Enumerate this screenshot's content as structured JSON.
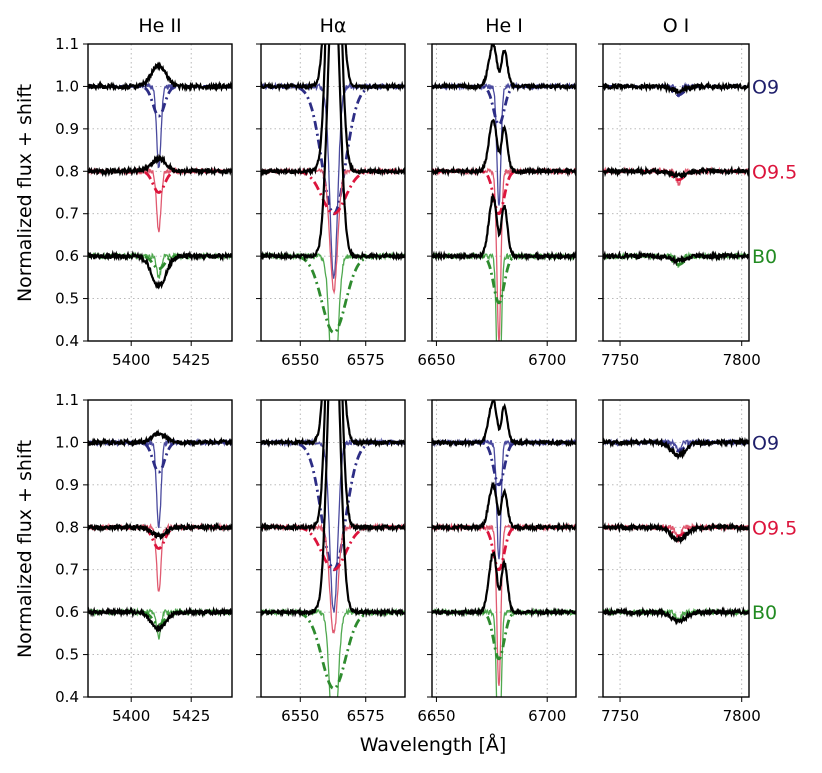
{
  "chart_data": {
    "type": "line",
    "ylabel": "Normalized flux + shift",
    "xlabel": "Wavelength [Å]",
    "ylim": [
      0.4,
      1.1
    ],
    "yticks": [
      "0.4",
      "0.5",
      "0.6",
      "0.7",
      "0.8",
      "0.9",
      "1.0",
      "1.1"
    ],
    "grid": true,
    "columns": [
      {
        "title": "He II",
        "line_center": 5411.5,
        "xlim": [
          5382,
          5442
        ],
        "xticks": [
          5400,
          5425
        ]
      },
      {
        "title": "Hα",
        "line_center": 6562.8,
        "xlim": [
          6535,
          6590
        ],
        "xticks": [
          6550,
          6575
        ]
      },
      {
        "title": "He I",
        "line_center": 6678.2,
        "xlim": [
          6648,
          6713
        ],
        "xticks": [
          6650,
          6700
        ]
      },
      {
        "title": "O I",
        "line_center": 7774,
        "xlim": [
          7743,
          7803
        ],
        "xticks": [
          7750,
          7800
        ]
      }
    ],
    "spectral_types": [
      {
        "name": "O9",
        "offset": 1.0,
        "color": "#1f1f6b",
        "model_color": "#2d2d85",
        "obs_color": "#4a4a9e"
      },
      {
        "name": "O9.5",
        "offset": 0.8,
        "color": "#dc143c",
        "model_color": "#dc143c",
        "obs_color": "#e05a70"
      },
      {
        "name": "B0",
        "offset": 0.6,
        "color": "#228b22",
        "model_color": "#2e8b2e",
        "obs_color": "#4fa84f"
      }
    ],
    "line_depths": {
      "top": {
        "model": [
          [
            0.07,
            0.3,
            0.09,
            0.02
          ],
          [
            0.05,
            0.1,
            0.1,
            0.02
          ],
          [
            0.03,
            0.18,
            0.11,
            0.02
          ]
        ],
        "observed_thin": [
          [
            0.19,
            0.45,
            0.28,
            0.02
          ],
          [
            0.14,
            0.28,
            0.4,
            0.03
          ],
          [
            0.05,
            0.35,
            0.42,
            0.02
          ]
        ],
        "emission_black": [
          [
            -0.05,
            0.85,
            0.1,
            0.01
          ],
          [
            -0.03,
            0.9,
            0.12,
            0.01
          ],
          [
            0.07,
            0.7,
            0.14,
            0.01
          ]
        ]
      },
      "bottom": {
        "model": [
          [
            0.07,
            0.3,
            0.1,
            0.02
          ],
          [
            0.05,
            0.1,
            0.1,
            0.02
          ],
          [
            0.03,
            0.18,
            0.11,
            0.02
          ]
        ],
        "observed_thin": [
          [
            0.2,
            0.4,
            0.28,
            0.02
          ],
          [
            0.15,
            0.25,
            0.38,
            0.03
          ],
          [
            0.06,
            0.32,
            0.4,
            0.02
          ]
        ],
        "emission_black": [
          [
            -0.02,
            0.9,
            0.1,
            0.03
          ],
          [
            0.02,
            0.95,
            0.1,
            0.03
          ],
          [
            0.04,
            0.8,
            0.14,
            0.02
          ]
        ]
      }
    }
  }
}
